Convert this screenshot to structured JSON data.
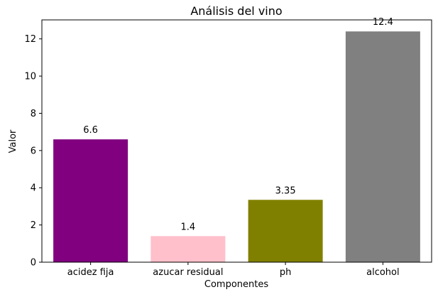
{
  "chart_data": {
    "type": "bar",
    "title": "Análisis del vino",
    "xlabel": "Componentes",
    "ylabel": "Valor",
    "categories": [
      "acidez fija",
      "azucar residual",
      "ph",
      "alcohol"
    ],
    "values": [
      6.6,
      1.4,
      3.35,
      12.4
    ],
    "value_labels": [
      "6.6",
      "1.4",
      "3.35",
      "12.4"
    ],
    "colors": [
      "#800080",
      "#ffc0cb",
      "#808000",
      "#808080"
    ],
    "ylim": [
      0,
      13.02
    ],
    "yticks": [
      0,
      2,
      4,
      6,
      8,
      10,
      12
    ],
    "grid": false,
    "legend": "none"
  }
}
